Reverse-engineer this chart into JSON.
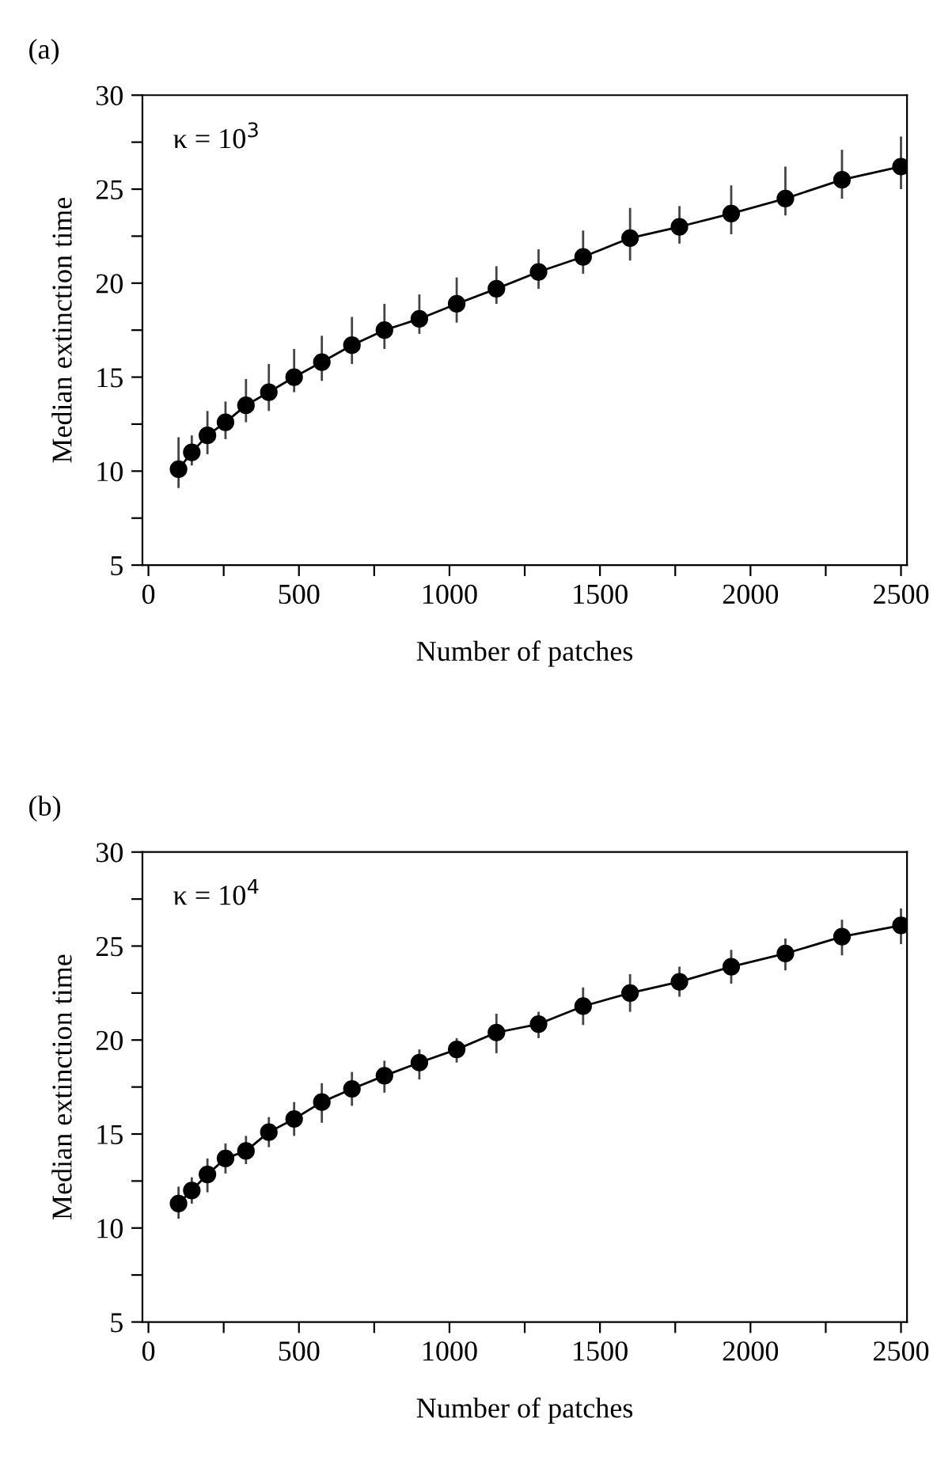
{
  "chart_data": [
    {
      "type": "line",
      "title": "(a)",
      "xlabel": "Number of patches",
      "ylabel": "Median extinction time",
      "annotations": [
        "κ = 10$^{3}$"
      ],
      "x": [
        100,
        144,
        196,
        256,
        324,
        400,
        484,
        576,
        676,
        784,
        900,
        1024,
        1156,
        1296,
        1444,
        1600,
        1764,
        1936,
        2116,
        2304,
        2500
      ],
      "series": [
        {
          "color": "#000000",
          "values": [
            10.1,
            11.0,
            11.9,
            12.6,
            13.5,
            14.2,
            15.0,
            15.8,
            16.7,
            17.5,
            18.1,
            18.9,
            19.7,
            20.6,
            21.4,
            22.4,
            23.0,
            23.7,
            24.5,
            25.5,
            26.2
          ],
          "errors": [
            [
              9.1,
              11.8
            ],
            [
              10.3,
              11.9
            ],
            [
              10.9,
              13.2
            ],
            [
              11.7,
              13.7
            ],
            [
              12.6,
              14.9
            ],
            [
              13.2,
              15.7
            ],
            [
              14.2,
              16.5
            ],
            [
              14.8,
              17.2
            ],
            [
              15.7,
              18.2
            ],
            [
              16.5,
              18.9
            ],
            [
              17.3,
              19.4
            ],
            [
              17.9,
              20.3
            ],
            [
              18.9,
              20.9
            ],
            [
              19.7,
              21.8
            ],
            [
              20.5,
              22.8
            ],
            [
              21.2,
              24.0
            ],
            [
              22.1,
              24.1
            ],
            [
              22.6,
              25.2
            ],
            [
              23.6,
              26.2
            ],
            [
              24.5,
              27.1
            ],
            [
              25.0,
              27.8
            ]
          ]
        }
      ],
      "marker": "circle",
      "line_style": "solid",
      "grid": false,
      "legend": false,
      "xlim": [
        -20,
        2520
      ],
      "ylim": [
        5,
        30
      ],
      "xticks": [
        0,
        {
          "value": 250,
          "label": null
        },
        500,
        {
          "value": 750,
          "label": null
        },
        1000,
        {
          "value": 1250,
          "label": null
        },
        1500,
        {
          "value": 1750,
          "label": null
        },
        2000,
        {
          "value": 2250,
          "label": null
        },
        2500
      ],
      "yticks": [
        5,
        {
          "value": 7.5,
          "label": null
        },
        10,
        {
          "value": 12.5,
          "label": null
        },
        15,
        {
          "value": 17.5,
          "label": null
        },
        20,
        {
          "value": 22.5,
          "label": null
        },
        25,
        {
          "value": 27.5,
          "label": null
        },
        30
      ]
    },
    {
      "type": "line",
      "title": "(b)",
      "xlabel": "Number of patches",
      "ylabel": "Median extinction time",
      "annotations": [
        "κ = 10$^{4}$"
      ],
      "x": [
        100,
        144,
        196,
        256,
        324,
        400,
        484,
        576,
        676,
        784,
        900,
        1024,
        1156,
        1296,
        1444,
        1600,
        1764,
        1936,
        2116,
        2304,
        2500
      ],
      "series": [
        {
          "color": "#000000",
          "values": [
            11.3,
            12.0,
            12.85,
            13.7,
            14.1,
            15.1,
            15.8,
            16.7,
            17.4,
            18.1,
            18.8,
            19.5,
            20.4,
            20.85,
            21.8,
            22.5,
            23.1,
            23.9,
            24.6,
            25.5,
            26.1
          ],
          "errors": [
            [
              10.5,
              12.2
            ],
            [
              11.3,
              12.7
            ],
            [
              11.9,
              13.7
            ],
            [
              12.9,
              14.5
            ],
            [
              13.4,
              14.9
            ],
            [
              14.3,
              15.9
            ],
            [
              14.9,
              16.7
            ],
            [
              15.6,
              17.7
            ],
            [
              16.5,
              18.3
            ],
            [
              17.2,
              18.9
            ],
            [
              17.9,
              19.5
            ],
            [
              18.8,
              20.1
            ],
            [
              19.3,
              21.4
            ],
            [
              20.1,
              21.5
            ],
            [
              20.8,
              22.8
            ],
            [
              21.5,
              23.5
            ],
            [
              22.3,
              23.9
            ],
            [
              23.0,
              24.8
            ],
            [
              23.7,
              25.4
            ],
            [
              24.5,
              26.4
            ],
            [
              25.1,
              27.0
            ]
          ]
        }
      ],
      "marker": "circle",
      "line_style": "solid",
      "grid": false,
      "legend": false,
      "xlim": [
        -20,
        2520
      ],
      "ylim": [
        5,
        30
      ],
      "xticks": [
        0,
        {
          "value": 250,
          "label": null
        },
        500,
        {
          "value": 750,
          "label": null
        },
        1000,
        {
          "value": 1250,
          "label": null
        },
        1500,
        {
          "value": 1750,
          "label": null
        },
        2000,
        {
          "value": 2250,
          "label": null
        },
        2500
      ],
      "yticks": [
        5,
        {
          "value": 7.5,
          "label": null
        },
        10,
        {
          "value": 12.5,
          "label": null
        },
        15,
        {
          "value": 17.5,
          "label": null
        },
        20,
        {
          "value": 22.5,
          "label": null
        },
        25,
        {
          "value": 27.5,
          "label": null
        },
        30
      ]
    }
  ]
}
